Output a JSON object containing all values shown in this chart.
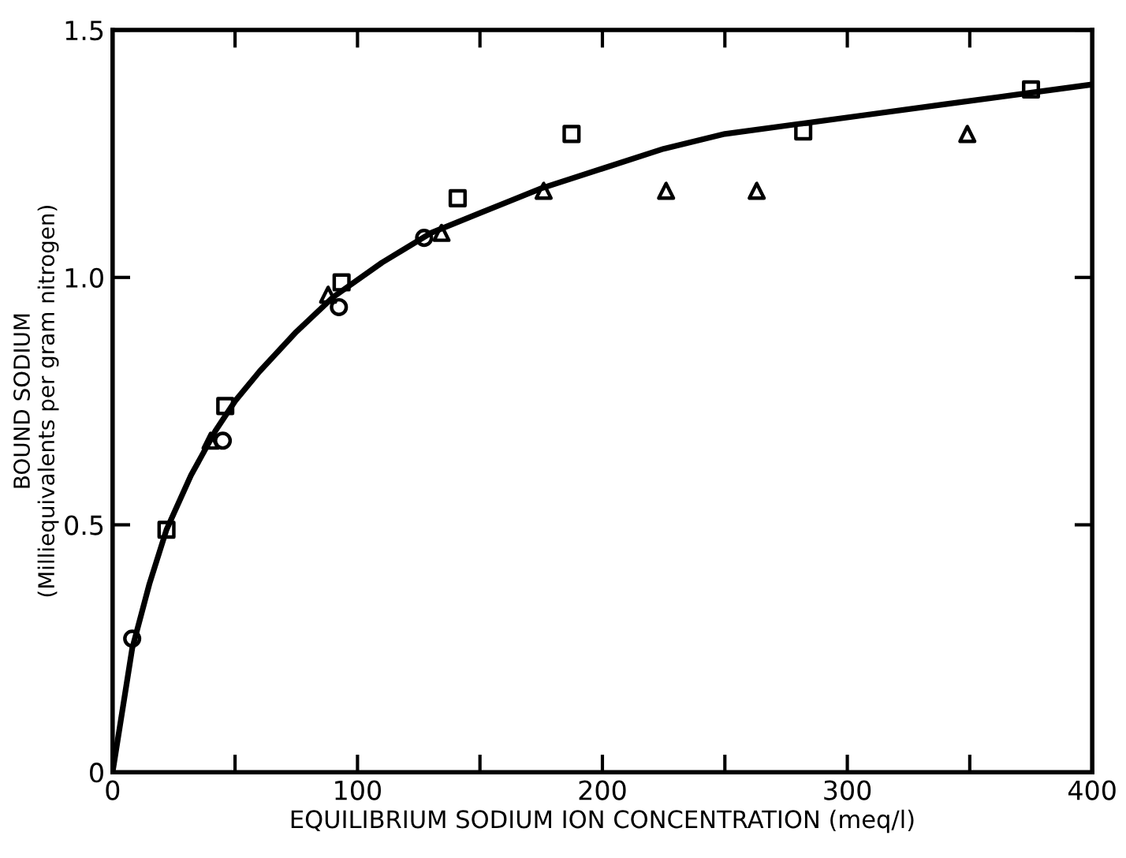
{
  "chart_data": {
    "type": "scatter",
    "xlabel": "EQUILIBRIUM SODIUM ION CONCENTRATION (meq/l)",
    "ylabel": "BOUND SODIUM\n(Milliequivalents per gram nitrogen)",
    "xlim": [
      0,
      400
    ],
    "ylim": [
      0,
      1.5
    ],
    "xticks": [
      0,
      {
        "value": 50,
        "label": null
      },
      100,
      {
        "value": 150,
        "label": null
      },
      200,
      {
        "value": 250,
        "label": null
      },
      300,
      {
        "value": 350,
        "label": null
      },
      400
    ],
    "yticks": [
      0,
      0.5,
      {
        "value": 1.0,
        "label": "1.0"
      },
      1.5
    ],
    "grid": false,
    "legend": false,
    "series": [
      {
        "marker": "circle",
        "color": "#000000",
        "x": [
          8,
          45,
          92.4,
          127.2
        ],
        "values": [
          0.27,
          0.67,
          0.94,
          1.08
        ]
      },
      {
        "marker": "square",
        "color": "#000000",
        "x": [
          22,
          46,
          93.5,
          140.9,
          187.4,
          282,
          375
        ],
        "values": [
          0.49,
          0.74,
          0.99,
          1.16,
          1.29,
          1.295,
          1.38
        ]
      },
      {
        "marker": "triangle",
        "color": "#000000",
        "x": [
          40,
          88,
          134.3,
          176,
          226,
          263,
          349
        ],
        "values": [
          0.67,
          0.965,
          1.09,
          1.175,
          1.175,
          1.175,
          1.29
        ]
      },
      {
        "type": "line",
        "marker": "none",
        "line_style": "solid",
        "color": "#000000",
        "x": [
          0,
          8,
          15,
          22,
          32,
          42,
          50,
          60,
          75,
          90,
          110,
          130,
          150,
          175,
          200,
          225,
          250,
          280,
          310,
          340,
          370,
          400
        ],
        "values": [
          0,
          0.25,
          0.38,
          0.49,
          0.6,
          0.69,
          0.75,
          0.81,
          0.89,
          0.96,
          1.03,
          1.09,
          1.13,
          1.18,
          1.22,
          1.26,
          1.29,
          1.31,
          1.33,
          1.35,
          1.37,
          1.39
        ]
      }
    ]
  }
}
